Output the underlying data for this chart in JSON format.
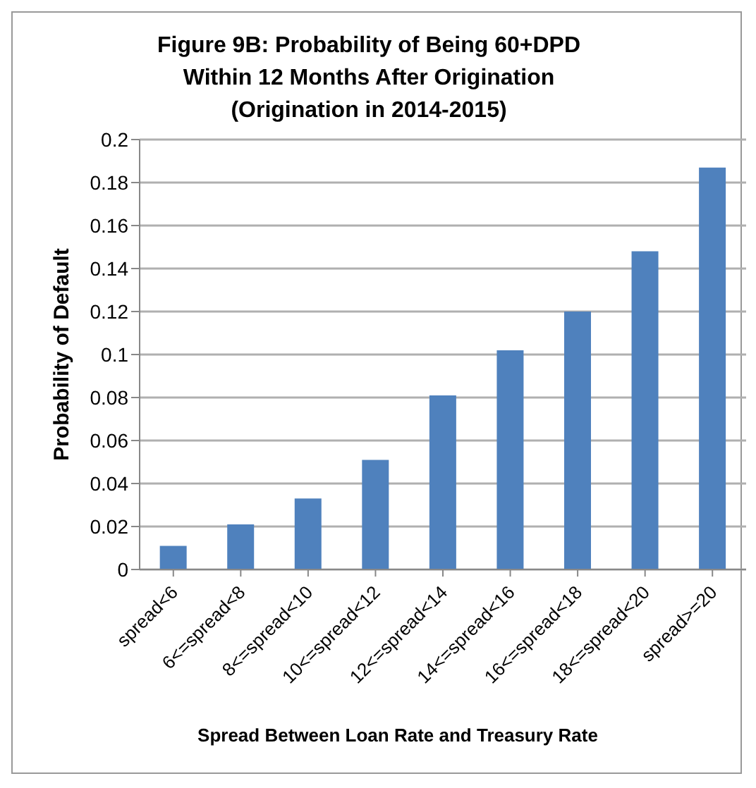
{
  "chart_data": {
    "type": "bar",
    "title": "Figure 9B: Probability of Being 60+DPD Within 12 Months After Origination (Origination in 2014-2015)",
    "xlabel": "Spread Between Loan Rate and Treasury Rate",
    "ylabel": "Probability of Default",
    "categories": [
      "spread<6",
      "6<=spread<8",
      "8<=spread<10",
      "10<=spread<12",
      "12<=spread<14",
      "14<=spread<16",
      "16<=spread<18",
      "18<=spread<20",
      "spread>=20"
    ],
    "values": [
      0.011,
      0.021,
      0.033,
      0.051,
      0.081,
      0.102,
      0.12,
      0.148,
      0.187
    ],
    "color": "#4f81bd",
    "ylim": [
      0,
      0.2
    ],
    "yticks": [
      0,
      0.02,
      0.04,
      0.06,
      0.08,
      0.1,
      0.12,
      0.14,
      0.16,
      0.18,
      0.2
    ],
    "grid": "y"
  }
}
